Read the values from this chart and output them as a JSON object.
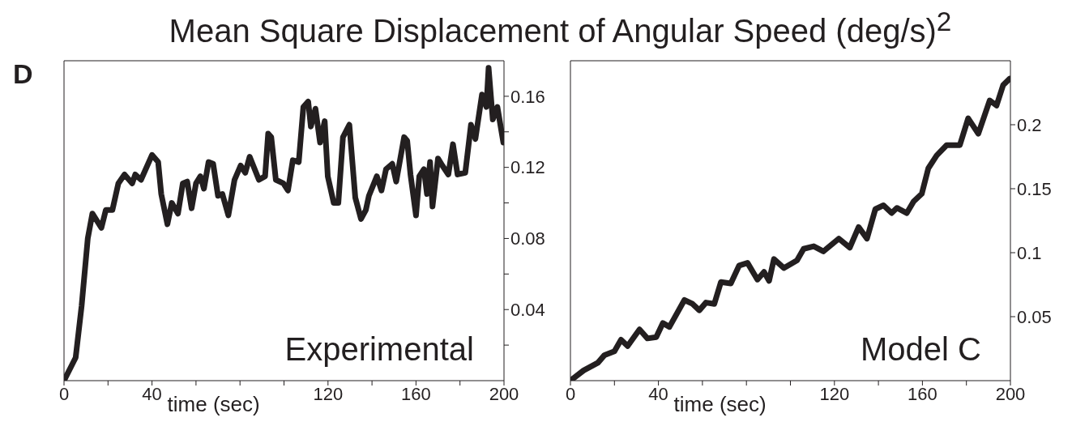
{
  "chart_data": [
    {
      "type": "line",
      "title": "Mean Square Displacement of Angular Speed (deg/s)$^{2}$",
      "xlabel": "time (sec)",
      "annotations": [
        "D"
      ],
      "x": [
        0,
        5.3,
        8,
        10.8,
        12.9,
        17,
        19,
        22,
        24.7,
        27.5,
        31,
        32.4,
        35,
        40,
        42.8,
        44.2,
        47,
        49,
        51.8,
        54,
        56,
        58,
        60,
        62,
        63.6,
        65.7,
        67.8,
        70,
        72,
        74.7,
        77.5,
        80.3,
        82.4,
        84.4,
        88.6,
        91.4,
        92.8,
        94.2,
        96.3,
        99.7,
        101.8,
        104,
        106.7,
        108.8,
        111,
        112.2,
        114.3,
        116.4,
        118.5,
        119.9,
        122.6,
        124.7,
        126.8,
        129.7,
        132.4,
        135,
        137.2,
        138.6,
        142.2,
        144.3,
        146.4,
        149.2,
        151,
        154.6,
        156,
        157.5,
        160,
        161.5,
        163.6,
        165,
        166.4,
        167.5,
        170,
        172,
        174.7,
        176.8,
        178.9,
        182.4,
        185,
        187,
        190,
        192,
        193,
        194.9,
        197,
        199.7
      ],
      "series": [
        {
          "name": "Experimental",
          "color": "#231f20",
          "values": [
            0,
            0.013,
            0.042,
            0.08,
            0.094,
            0.086,
            0.096,
            0.096,
            0.111,
            0.116,
            0.111,
            0.116,
            0.113,
            0.127,
            0.123,
            0.105,
            0.088,
            0.1,
            0.094,
            0.111,
            0.112,
            0.097,
            0.111,
            0.115,
            0.108,
            0.123,
            0.122,
            0.104,
            0.105,
            0.093,
            0.113,
            0.121,
            0.117,
            0.126,
            0.113,
            0.115,
            0.139,
            0.137,
            0.113,
            0.111,
            0.107,
            0.124,
            0.123,
            0.154,
            0.157,
            0.143,
            0.153,
            0.134,
            0.146,
            0.115,
            0.1,
            0.1,
            0.137,
            0.144,
            0.103,
            0.091,
            0.096,
            0.104,
            0.115,
            0.107,
            0.119,
            0.122,
            0.112,
            0.137,
            0.135,
            0.116,
            0.093,
            0.115,
            0.119,
            0.105,
            0.123,
            0.098,
            0.125,
            0.121,
            0.116,
            0.133,
            0.116,
            0.117,
            0.144,
            0.136,
            0.161,
            0.154,
            0.176,
            0.147,
            0.154,
            0.134
          ]
        }
      ],
      "xlim": [
        0,
        200
      ],
      "xticks": [
        0,
        {
          "value": 20,
          "label": null
        },
        40,
        {
          "value": 60,
          "label": null
        },
        {
          "value": 80,
          "label": null
        },
        {
          "value": 100,
          "label": null
        },
        120,
        {
          "value": 140,
          "label": null
        },
        160,
        {
          "value": 180,
          "label": null
        },
        200
      ],
      "ylim": [
        0,
        0.18
      ],
      "yticks": [
        {
          "value": 0.02,
          "label": null
        },
        0.04,
        {
          "value": 0.06,
          "label": null
        },
        0.08,
        {
          "value": 0.1,
          "label": null
        },
        0.12,
        {
          "value": 0.14,
          "label": null
        },
        0.16
      ],
      "grid": false
    },
    {
      "type": "line",
      "xlabel": "time (sec)",
      "x": [
        0,
        6,
        12.5,
        15.5,
        20,
        23,
        26,
        31.4,
        35,
        39,
        42,
        45,
        51.8,
        55.5,
        58.6,
        61.6,
        65.4,
        68.4,
        72.9,
        76.7,
        80.5,
        85,
        88,
        90.3,
        92.5,
        97,
        103,
        106,
        110.6,
        115,
        122,
        127,
        131,
        134.8,
        138.6,
        142.3,
        146,
        148.4,
        152.9,
        156,
        159.7,
        162.7,
        166.5,
        171,
        177,
        180.8,
        185.4,
        190.6,
        193.7,
        196.7,
        199.7
      ],
      "series": [
        {
          "name": "Model C",
          "color": "#231f20",
          "values": [
            0,
            0.008,
            0.014,
            0.02,
            0.023,
            0.032,
            0.027,
            0.04,
            0.033,
            0.034,
            0.045,
            0.042,
            0.063,
            0.06,
            0.055,
            0.061,
            0.06,
            0.077,
            0.076,
            0.09,
            0.092,
            0.079,
            0.085,
            0.078,
            0.095,
            0.088,
            0.094,
            0.103,
            0.105,
            0.101,
            0.111,
            0.104,
            0.12,
            0.111,
            0.134,
            0.137,
            0.131,
            0.135,
            0.131,
            0.14,
            0.146,
            0.166,
            0.176,
            0.184,
            0.184,
            0.205,
            0.193,
            0.219,
            0.215,
            0.231,
            0.236
          ]
        }
      ],
      "xlim": [
        0,
        200
      ],
      "xticks": [
        0,
        {
          "value": 20,
          "label": null
        },
        40,
        {
          "value": 60,
          "label": null
        },
        {
          "value": 80,
          "label": null
        },
        {
          "value": 100,
          "label": null
        },
        120,
        {
          "value": 140,
          "label": null
        },
        160,
        {
          "value": 180,
          "label": null
        },
        200
      ],
      "ylim": [
        0,
        0.25
      ],
      "yticks": [
        0.05,
        0.1,
        0.15,
        0.2
      ],
      "grid": false
    }
  ]
}
